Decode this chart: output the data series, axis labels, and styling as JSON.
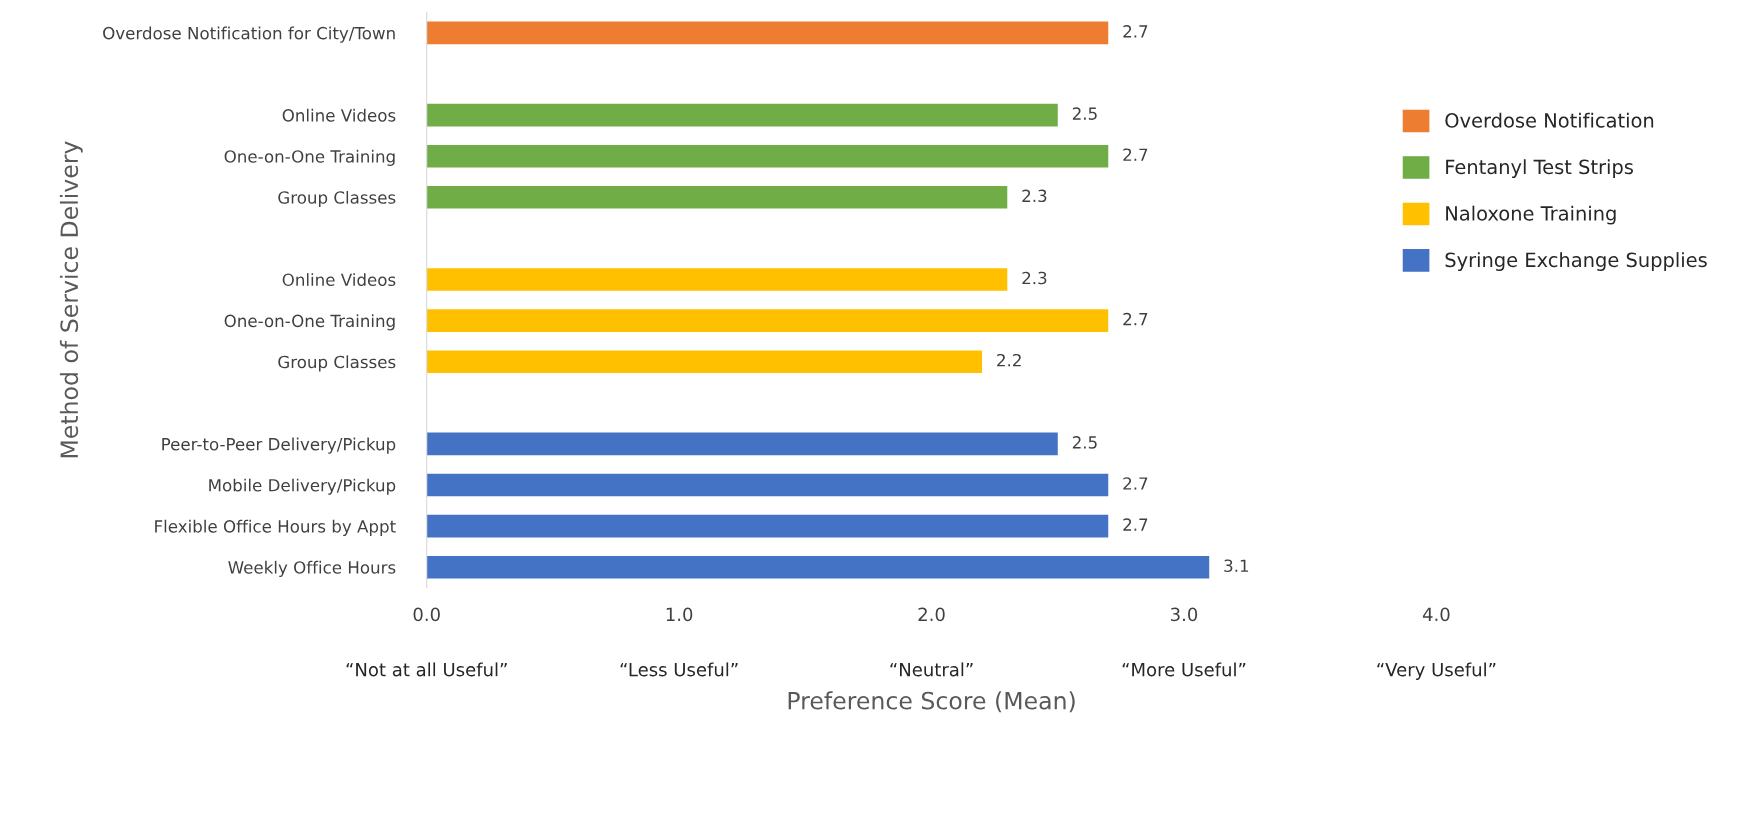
{
  "chart_data": {
    "type": "bar",
    "orientation": "horizontal",
    "data_labels": true,
    "xlabel": "Preference Score (Mean)",
    "ylabel": "Method of Service Delivery",
    "categories": [
      "Overdose Notification for City/Town",
      null,
      "Online Videos",
      "One-on-One Training",
      "Group Classes",
      null,
      "Online Videos",
      "One-on-One Training",
      "Group Classes",
      null,
      "Peer-to-Peer Delivery/Pickup",
      "Mobile Delivery/Pickup",
      "Flexible Office Hours by Appt",
      "Weekly Office Hours"
    ],
    "series": [
      {
        "name": "Overdose Notification",
        "color": "#ed7d31",
        "values": [
          2.7,
          null,
          null,
          null,
          null,
          null,
          null,
          null,
          null,
          null,
          null,
          null,
          null,
          null
        ]
      },
      {
        "name": "Fentanyl Test Strips",
        "color": "#70ad47",
        "values": [
          null,
          null,
          2.5,
          2.7,
          2.3,
          null,
          null,
          null,
          null,
          null,
          null,
          null,
          null,
          null
        ]
      },
      {
        "name": "Naloxone Training",
        "color": "#ffc000",
        "values": [
          null,
          null,
          null,
          null,
          null,
          null,
          2.3,
          2.7,
          2.2,
          null,
          null,
          null,
          null,
          null
        ]
      },
      {
        "name": "Syringe Exchange Supplies",
        "color": "#4472c4",
        "values": [
          null,
          null,
          null,
          null,
          null,
          null,
          null,
          null,
          null,
          null,
          2.5,
          2.7,
          2.7,
          3.1
        ]
      }
    ],
    "xlim": [
      0,
      4
    ],
    "xticks": [
      {
        "value": 0,
        "label": "0.0"
      },
      {
        "value": 1,
        "label": "1.0"
      },
      {
        "value": 2,
        "label": "2.0"
      },
      {
        "value": 3,
        "label": "3.0"
      },
      {
        "value": 4,
        "label": "4.0"
      }
    ],
    "annotations": [
      "“Not at all Useful”",
      "“Less Useful”",
      "“Neutral”",
      "“More Useful”",
      "“Very Useful”"
    ],
    "grid": false,
    "legend": "top right"
  }
}
